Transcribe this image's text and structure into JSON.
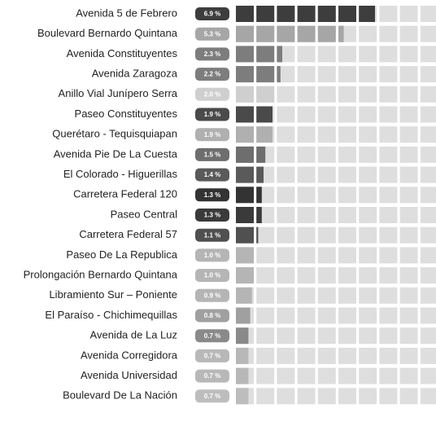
{
  "chart_data": {
    "type": "waffle-bar",
    "categories": [
      "Avenida 5 de Febrero",
      "Boulevard Bernardo Quintana",
      "Avenida Constituyentes",
      "Avenida Zaragoza",
      "Anillo Vial Junípero Serra",
      "Paseo Constituyentes",
      "Querétaro - Tequisquiapan",
      "Avenida Pie De La Cuesta",
      "El Colorado - Higuerillas",
      "Carretera Federal 120",
      "Paseo Central",
      "Carretera Federal 57",
      "Paseo De La Republica",
      "Prolongación Bernardo Quintana",
      "Libramiento Sur – Poniente",
      "El Paraíso - Chichimequillas",
      "Avenida de La Luz",
      "Avenida Corregidora",
      "Avenida Universidad",
      "Boulevard De La Nación"
    ],
    "values": [
      6.9,
      5.3,
      2.3,
      2.2,
      2.0,
      1.9,
      1.9,
      1.5,
      1.4,
      1.3,
      1.3,
      1.1,
      1.0,
      1.0,
      0.9,
      0.8,
      0.7,
      0.7,
      0.7,
      0.7
    ],
    "value_labels": [
      "6.9 %",
      "5.3 %",
      "2.3 %",
      "2.2 %",
      "2.0 %",
      "1.9 %",
      "1.9 %",
      "1.5 %",
      "1.4 %",
      "1.3 %",
      "1.3 %",
      "1.1 %",
      "1.0 %",
      "1.0 %",
      "0.9 %",
      "0.8 %",
      "0.7 %",
      "0.7 %",
      "0.7 %",
      "0.7 %"
    ],
    "colors": [
      "#3d3d3d",
      "#a6a6a6",
      "#7d7d7d",
      "#7d7d7d",
      "#cfcfcf",
      "#4a4a4a",
      "#b0b0b0",
      "#6e6e6e",
      "#5a5a5a",
      "#333333",
      "#3a3a3a",
      "#505050",
      "#b5b5b5",
      "#b5b5b5",
      "#b5b5b5",
      "#a0a0a0",
      "#8a8a8a",
      "#b8b8b8",
      "#b8b8b8",
      "#bdbdbd"
    ],
    "xlim": [
      0,
      10
    ]
  }
}
